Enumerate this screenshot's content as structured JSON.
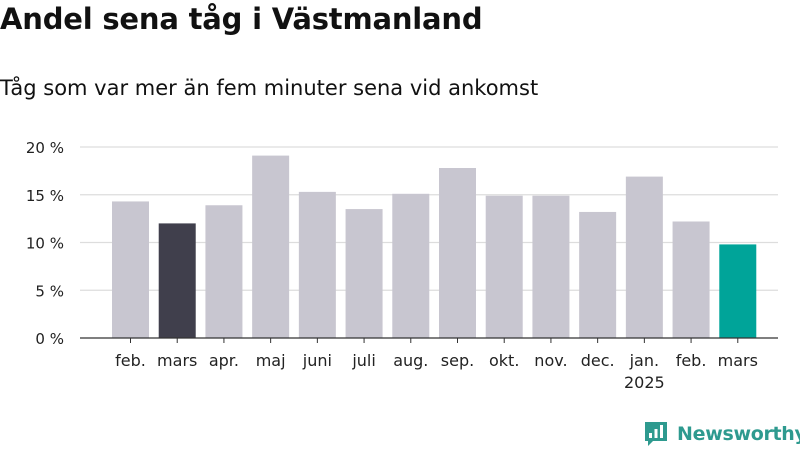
{
  "title": "Andel sena tåg i Västmanland",
  "subtitle": "Tåg som var mer än fem minuter sena vid ankomst",
  "brand": {
    "name": "Newsworthy",
    "icon": "newsworthy-logo-icon",
    "color": "#2e9a8f"
  },
  "colors": {
    "default": "#c8c6d0",
    "comparison": "#403f4c",
    "current": "#00a499",
    "grid": "#dddddd",
    "axis": "#333333"
  },
  "chart_data": {
    "type": "bar",
    "categories": [
      "feb.",
      "mars",
      "apr.",
      "maj",
      "juni",
      "juli",
      "aug.",
      "sep.",
      "okt.",
      "nov.",
      "dec.",
      "jan.",
      "feb.",
      "mars"
    ],
    "year_labels": [
      "",
      "",
      "",
      "",
      "",
      "",
      "",
      "",
      "",
      "",
      "",
      "2025",
      "",
      ""
    ],
    "values": [
      14.3,
      12.0,
      13.9,
      19.1,
      15.3,
      13.5,
      15.1,
      17.8,
      14.9,
      14.9,
      13.2,
      16.9,
      12.2,
      9.8
    ],
    "highlight": [
      "default",
      "comparison",
      "default",
      "default",
      "default",
      "default",
      "default",
      "default",
      "default",
      "default",
      "default",
      "default",
      "default",
      "current"
    ],
    "yticks": [
      0,
      5,
      10,
      15,
      20
    ],
    "ytick_labels": [
      "0 %",
      "5 %",
      "10 %",
      "15 %",
      "20 %"
    ],
    "ylim": [
      0,
      20
    ],
    "grid": true
  }
}
